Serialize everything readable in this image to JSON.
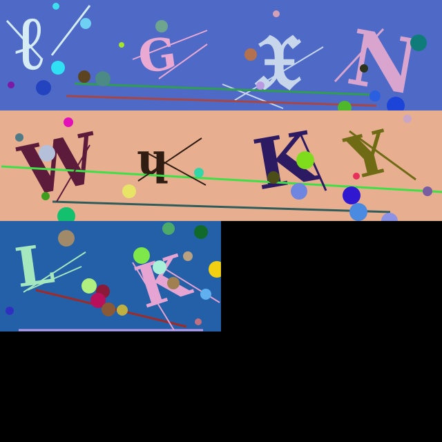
{
  "colors": {
    "panel1_bg": "#4e6ac6",
    "panel2_bg": "#e7ae90",
    "panel3_bg": "#2360a8",
    "empty_bg": "#000000"
  },
  "panels": [
    {
      "glyphs": [
        {
          "char": "ℓ",
          "color": "#d6ecf5"
        },
        {
          "char": "G",
          "color": "#e9a9d3"
        },
        {
          "char": "𝔛",
          "color": "#c8d6ec"
        },
        {
          "char": "N",
          "color": "#d9a5cf"
        }
      ]
    },
    {
      "glyphs": [
        {
          "char": "W",
          "color": "#5c1b3b"
        },
        {
          "char": "ɥ",
          "color": "#2f1c12"
        },
        {
          "char": "K",
          "color": "#2c1a62"
        },
        {
          "char": "Y",
          "color": "#6f6b14"
        }
      ]
    },
    {
      "glyphs": [
        {
          "char": "L",
          "color": "#a6e8be"
        },
        {
          "char": "K",
          "color": "#e6a4d3"
        }
      ]
    }
  ]
}
